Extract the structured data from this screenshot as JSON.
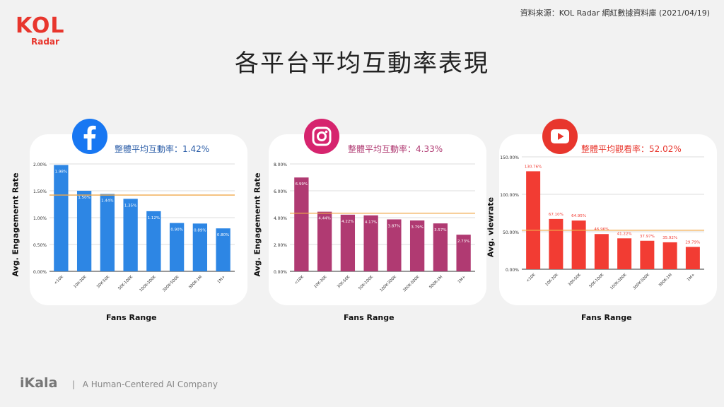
{
  "source": "資料來源：KOL Radar 網紅數據資料庫 (2021/04/19)",
  "logo": {
    "main": "KOL",
    "sub": "Radar"
  },
  "title": "各平台平均互動率表現",
  "footer": {
    "brand": "iKala",
    "separator": "|",
    "tagline": "A Human-Centered AI Company"
  },
  "colors": {
    "facebook": "#2d86e4",
    "instagram": "#b03a72",
    "youtube": "#f23c33",
    "avg_line": "#f0a84a"
  },
  "chart_data": [
    {
      "type": "bar",
      "platform_icon": "facebook-icon",
      "avg_text": "整體平均互動率：1.42%",
      "avg_value": 1.42,
      "ylabel": "Avg. Engagemernt Rate",
      "xlabel": "Fans Range",
      "categories": [
        "<10K",
        "10K-30K",
        "30K-50K",
        "50K-100K",
        "100K-300K",
        "300K-500K",
        "500K-1M",
        "1M+"
      ],
      "values": [
        1.98,
        1.5,
        1.44,
        1.35,
        1.12,
        0.9,
        0.89,
        0.8
      ],
      "value_labels": [
        "1.98%",
        "1.50%",
        "1.44%",
        "1.35%",
        "1.12%",
        "0.90%",
        "0.89%",
        "0.80%"
      ],
      "yticks": [
        "0.00%",
        "0.50%",
        "1.00%",
        "1.50%",
        "2.00%"
      ],
      "ylim": [
        0,
        2.0
      ],
      "label_inside": true
    },
    {
      "type": "bar",
      "platform_icon": "instagram-icon",
      "avg_text": "整體平均互動率：4.33%",
      "avg_value": 4.33,
      "ylabel": "Avg. Engagemernt Rate",
      "xlabel": "Fans Range",
      "categories": [
        "<10K",
        "10K-30K",
        "30K-50K",
        "50K-100K",
        "100K-300K",
        "300K-500K",
        "500K-1M",
        "1M+"
      ],
      "values": [
        6.99,
        4.44,
        4.22,
        4.17,
        3.87,
        3.79,
        3.57,
        2.73
      ],
      "value_labels": [
        "6.99%",
        "4.44%",
        "4.22%",
        "4.17%",
        "3.87%",
        "3.79%",
        "3.57%",
        "2.73%"
      ],
      "yticks": [
        "0.00%",
        "2.00%",
        "4.00%",
        "6.00%",
        "8.00%"
      ],
      "ylim": [
        0,
        8.0
      ],
      "label_inside": true
    },
    {
      "type": "bar",
      "platform_icon": "youtube-icon",
      "avg_text": "整體平均觀看率：52.02%",
      "avg_value": 52.02,
      "ylabel": "Avg. viewrate",
      "xlabel": "Fans Range",
      "categories": [
        "<10K",
        "10K-30K",
        "30K-50K",
        "50K-100K",
        "100K-300K",
        "300K-500K",
        "500K-1M",
        "1M+"
      ],
      "values": [
        130.76,
        67.1,
        64.95,
        46.96,
        41.22,
        37.97,
        35.92,
        29.79
      ],
      "value_labels": [
        "130.76%",
        "67.10%",
        "64.95%",
        "46.96%",
        "41.22%",
        "37.97%",
        "35.92%",
        "29.79%"
      ],
      "yticks": [
        "0.00%",
        "50.00%",
        "100.00%",
        "150.00%"
      ],
      "ylim": [
        0,
        150
      ],
      "label_inside": false
    }
  ]
}
